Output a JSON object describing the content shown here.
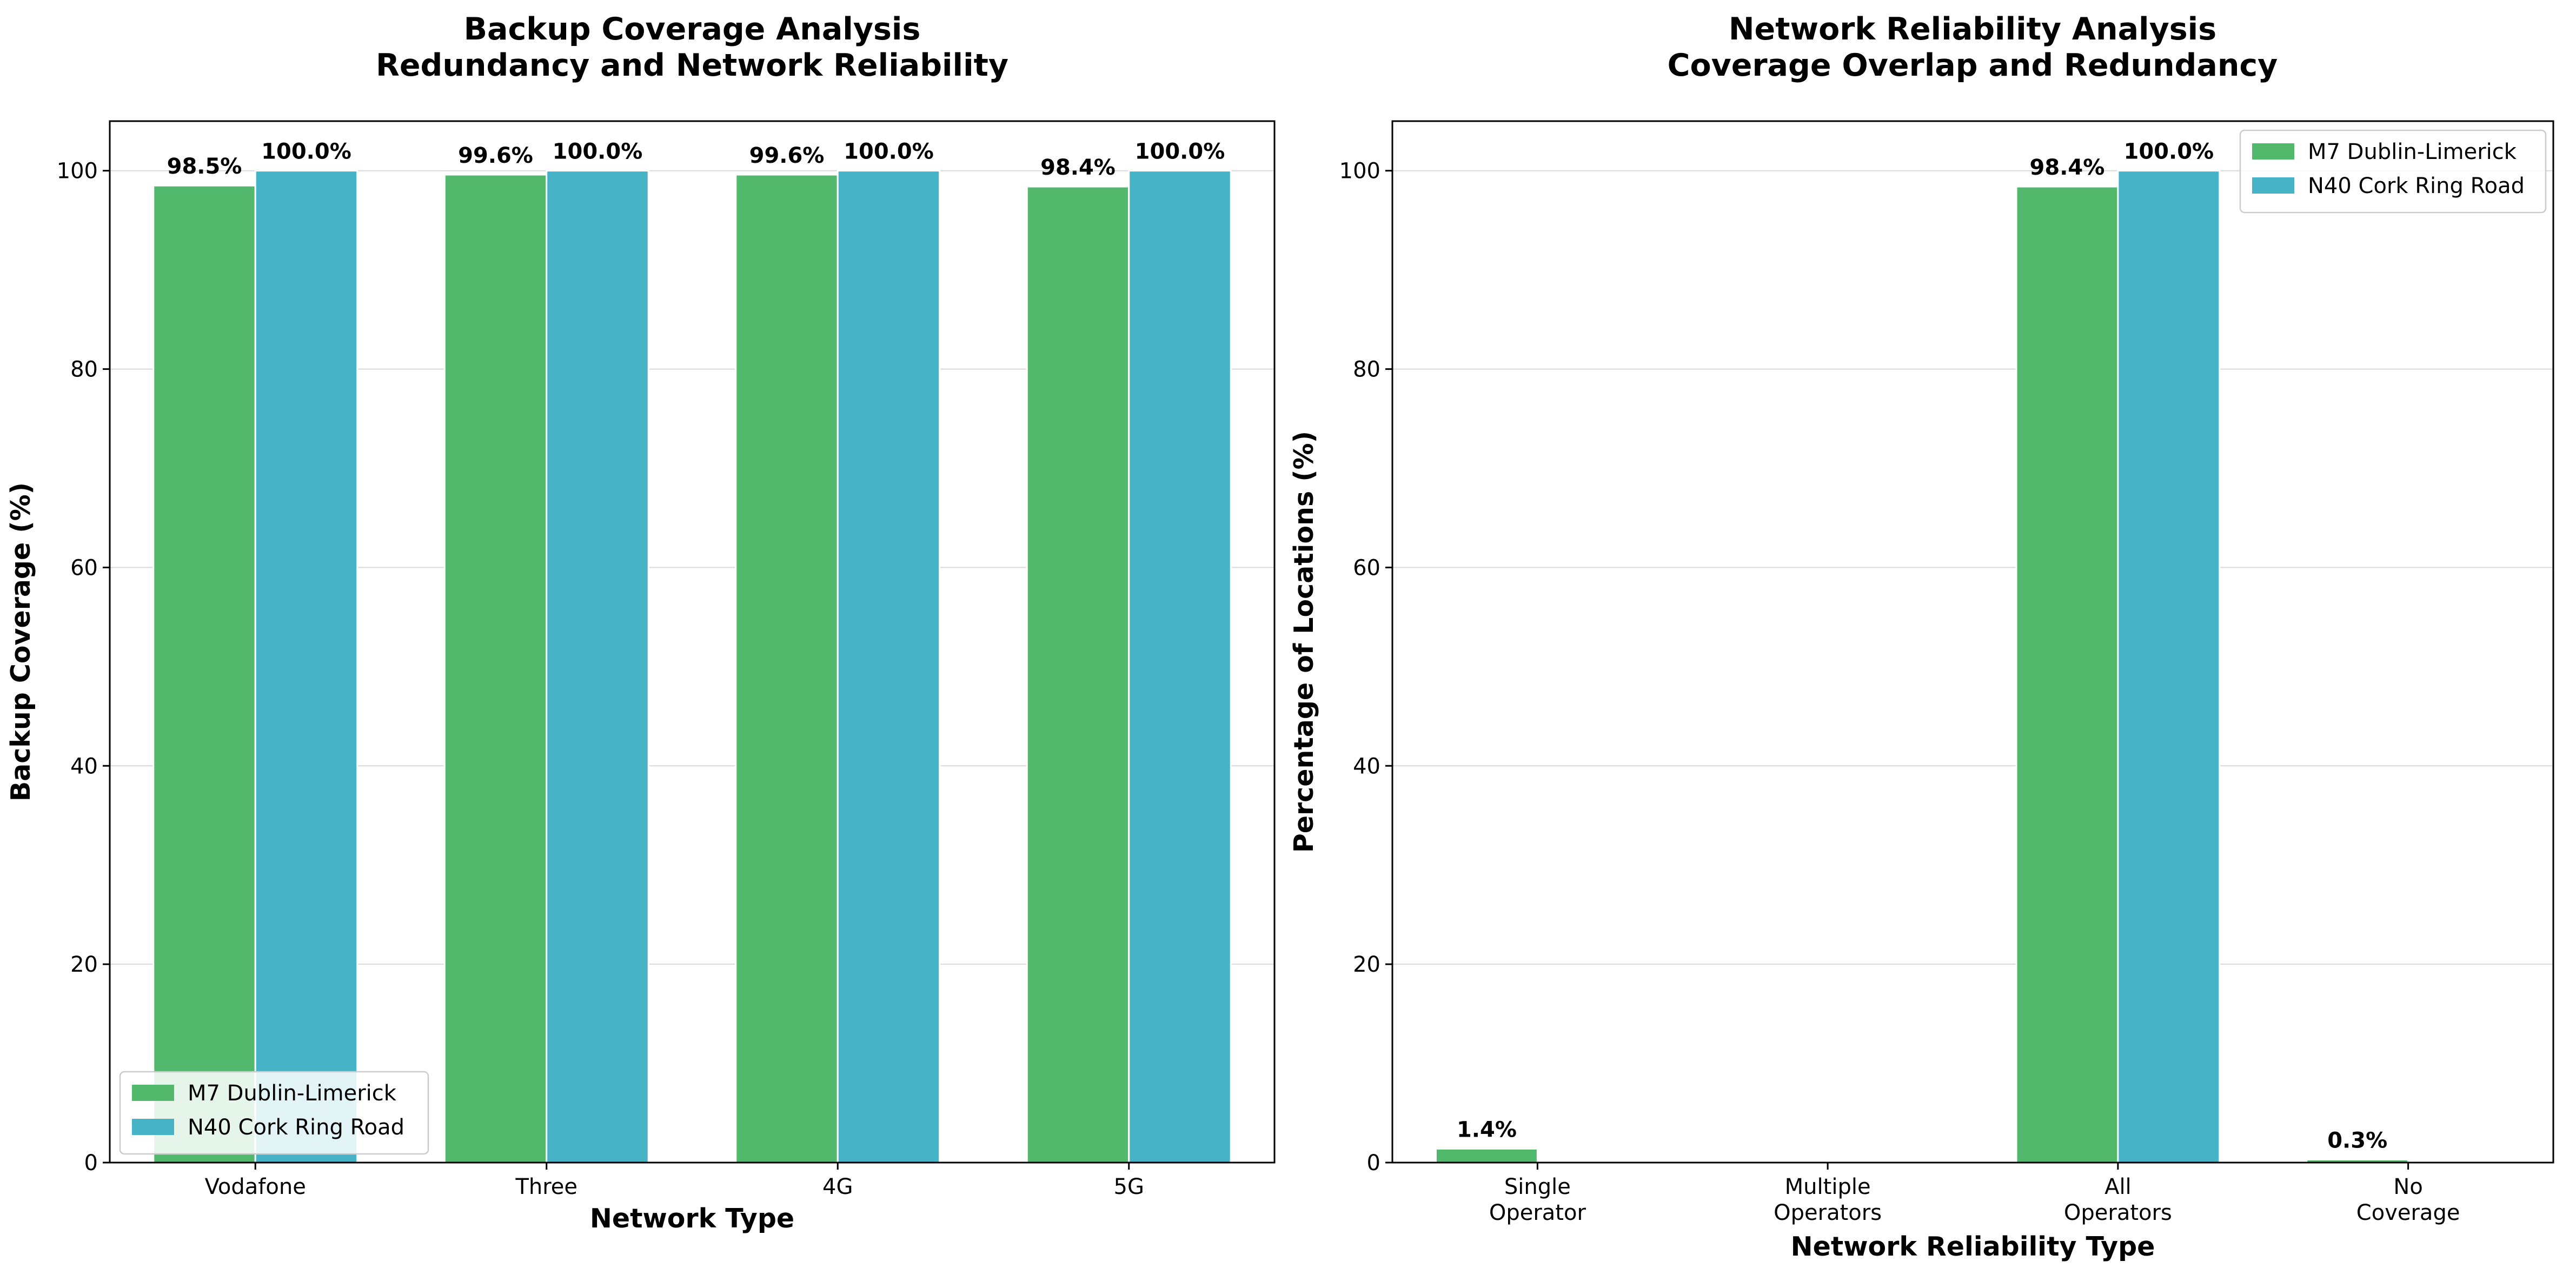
{
  "colors": {
    "m7": "#52b86b",
    "n40": "#45b2c6",
    "grid": "#d9d9d9"
  },
  "chart_data": [
    {
      "type": "bar",
      "title": "Backup Coverage Analysis",
      "subtitle": "Redundancy and Network Reliability",
      "xlabel": "Network Type",
      "ylabel": "Backup Coverage (%)",
      "ylim": [
        0,
        105
      ],
      "yticks": [
        0,
        20,
        40,
        60,
        80,
        100
      ],
      "grid": "horizontal",
      "legend_position": "bottom-left",
      "categories": [
        [
          "Vodafone"
        ],
        [
          "Three"
        ],
        [
          "4G"
        ],
        [
          "5G"
        ]
      ],
      "series": [
        {
          "name": "M7 Dublin-Limerick",
          "color": "#52b86b",
          "values": [
            98.5,
            99.6,
            99.6,
            98.4
          ],
          "labels": [
            "98.5%",
            "99.6%",
            "99.6%",
            "98.4%"
          ]
        },
        {
          "name": "N40 Cork Ring Road",
          "color": "#45b2c6",
          "values": [
            100.0,
            100.0,
            100.0,
            100.0
          ],
          "labels": [
            "100.0%",
            "100.0%",
            "100.0%",
            "100.0%"
          ]
        }
      ]
    },
    {
      "type": "bar",
      "title": "Network Reliability Analysis",
      "subtitle": "Coverage Overlap and Redundancy",
      "xlabel": "Network Reliability Type",
      "ylabel": "Percentage of Locations (%)",
      "ylim": [
        0,
        105
      ],
      "yticks": [
        0,
        20,
        40,
        60,
        80,
        100
      ],
      "grid": "horizontal",
      "legend_position": "top-right",
      "categories": [
        [
          "Single",
          "Operator"
        ],
        [
          "Multiple",
          "Operators"
        ],
        [
          "All",
          "Operators"
        ],
        [
          "No",
          "Coverage"
        ]
      ],
      "series": [
        {
          "name": "M7 Dublin-Limerick",
          "color": "#52b86b",
          "values": [
            1.4,
            0,
            98.4,
            0.3
          ],
          "labels": [
            "1.4%",
            "",
            "98.4%",
            "0.3%"
          ]
        },
        {
          "name": "N40 Cork Ring Road",
          "color": "#45b2c6",
          "values": [
            0,
            0,
            100.0,
            0
          ],
          "labels": [
            "",
            "",
            "100.0%",
            ""
          ]
        }
      ]
    }
  ]
}
